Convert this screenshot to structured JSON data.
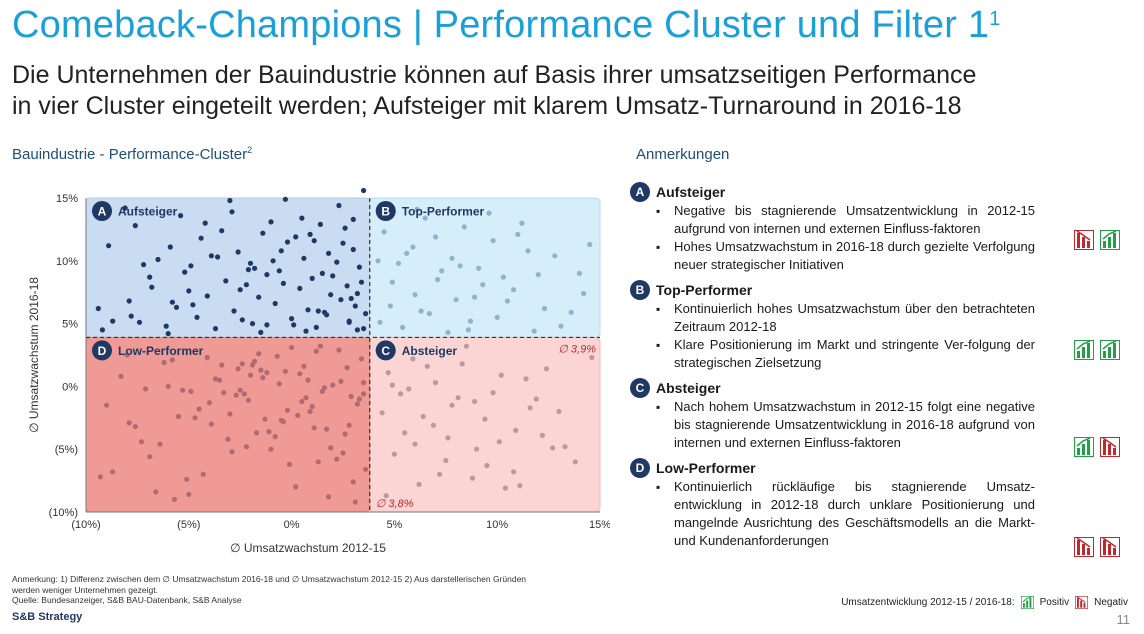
{
  "header": {
    "title": "Comeback-Champions | Performance Cluster und Filter 1",
    "title_sup": "1",
    "subtitle_line1": "Die Unternehmen der Bauindustrie können auf Basis ihrer umsatzseitigen Performance",
    "subtitle_line2": "in vier Cluster eingeteilt werden; Aufsteiger mit klarem Umsatz-Turnaround in 2016-18"
  },
  "chart_section_title": "Bauindustrie - Performance-Cluster",
  "chart_section_sup": "2",
  "notes_section_title": "Anmerkungen",
  "chart_data": {
    "type": "scatter",
    "xlabel": "∅ Umsatzwachstum 2012-15",
    "ylabel": "∅ Umsatzwachstum 2016-18",
    "xlim": [
      -10,
      15
    ],
    "ylim": [
      -10,
      15
    ],
    "x_ticks": [
      -10,
      -5,
      0,
      5,
      10,
      15
    ],
    "x_tick_labels": [
      "(10%)",
      "(5%)",
      "0%",
      "5%",
      "10%",
      "15%"
    ],
    "y_ticks": [
      -10,
      -5,
      0,
      5,
      10,
      15
    ],
    "y_tick_labels": [
      "(10%)",
      "(5%)",
      "0%",
      "5%",
      "10%",
      "15%"
    ],
    "x_threshold": 3.8,
    "y_threshold": 3.9,
    "x_threshold_label": "∅ 3,8%",
    "y_threshold_label": "∅ 3,9%",
    "quadrants": [
      {
        "letter": "A",
        "label": "Aufsteiger",
        "color": "#c9dcf2",
        "point_color": "#1f3864"
      },
      {
        "letter": "B",
        "label": "Top-Performer",
        "color": "#d6eefa",
        "point_color": "#8fb4cc"
      },
      {
        "letter": "C",
        "label": "Absteiger",
        "color": "#fbd5d3",
        "point_color": "#b99aa0"
      },
      {
        "letter": "D",
        "label": "Low-Performer",
        "color": "#ef9a94",
        "point_color": "#b06b72"
      }
    ],
    "series": [
      {
        "quadrant": "A",
        "x": [
          -9.2,
          -8.7,
          -7.9,
          -7.4,
          -6.8,
          -6.1,
          -5.6,
          -5.2,
          -4.6,
          -4.1,
          -3.7,
          -3.2,
          -2.8,
          -2.4,
          -2.0,
          -1.6,
          -1.2,
          -0.8,
          -0.4,
          0.0,
          0.4,
          0.8,
          1.2,
          1.6,
          2.0,
          2.4,
          2.8,
          3.2,
          3.5,
          -8.9,
          -7.6,
          -6.5,
          -5.4,
          -4.4,
          -3.4,
          -2.6,
          -1.8,
          -1.0,
          -0.2,
          0.6,
          1.4,
          2.2,
          3.0,
          -8.1,
          -6.9,
          -5.9,
          -4.9,
          -3.9,
          -2.9,
          -2.2,
          -1.4,
          -0.6,
          0.2,
          1.0,
          1.8,
          2.6,
          3.3,
          -9.4,
          -7.2,
          -5.0,
          -3.0,
          -1.2,
          0.5,
          1.9,
          3.1,
          -6.0,
          -4.2,
          -2.5,
          -0.9,
          0.9,
          2.3,
          3.4,
          -7.8,
          -3.6,
          -0.3,
          1.5,
          2.9,
          -5.8,
          -1.9,
          0.7,
          2.5,
          3.6,
          -4.8,
          -1.5,
          1.1,
          2.7,
          3.2,
          -2.1,
          0.1,
          1.7,
          3.0,
          -0.5,
          1.3,
          2.8,
          3.5
        ],
        "y": [
          4.5,
          5.2,
          6.8,
          5.1,
          7.9,
          4.8,
          6.3,
          9.1,
          5.5,
          7.2,
          4.6,
          8.4,
          6.0,
          5.3,
          9.8,
          7.1,
          4.9,
          6.6,
          8.2,
          5.4,
          7.8,
          6.1,
          4.7,
          5.9,
          8.8,
          6.9,
          5.2,
          7.4,
          4.6,
          11.2,
          12.8,
          10.1,
          13.6,
          11.8,
          12.4,
          10.7,
          9.4,
          13.1,
          11.5,
          10.2,
          12.9,
          9.9,
          10.9,
          14.2,
          8.7,
          11.1,
          9.6,
          10.4,
          13.9,
          8.1,
          12.2,
          9.2,
          11.9,
          8.6,
          10.6,
          12.6,
          9.5,
          6.2,
          9.7,
          7.6,
          14.8,
          8.9,
          13.4,
          7.3,
          6.4,
          4.2,
          13.0,
          7.7,
          10.0,
          12.1,
          14.4,
          8.3,
          5.6,
          10.3,
          14.9,
          9.0,
          7.0,
          6.7,
          5.0,
          4.4,
          11.4,
          5.8,
          6.5,
          4.3,
          11.6,
          8.0,
          4.5,
          9.3,
          4.9,
          5.7,
          13.3,
          10.8,
          6.0,
          5.1,
          15.6
        ]
      },
      {
        "quadrant": "B",
        "x": [
          4.3,
          4.8,
          5.4,
          6.0,
          6.7,
          7.3,
          8.0,
          8.6,
          9.3,
          10.0,
          10.8,
          11.5,
          12.3,
          13.1,
          14.2,
          4.5,
          5.2,
          5.9,
          6.5,
          7.1,
          7.8,
          8.4,
          9.1,
          9.8,
          10.5,
          11.2,
          12.0,
          12.8,
          13.6,
          14.5,
          4.9,
          5.6,
          6.3,
          7.0,
          7.6,
          8.2,
          8.9,
          9.6,
          10.3,
          11.0,
          4.2,
          6.1,
          8.7,
          11.8,
          14.0
        ],
        "y": [
          5.1,
          6.4,
          4.7,
          7.3,
          5.8,
          9.2,
          6.9,
          4.5,
          8.1,
          5.5,
          7.7,
          10.8,
          6.2,
          4.8,
          7.4,
          12.3,
          9.8,
          11.1,
          13.4,
          8.5,
          10.2,
          12.7,
          9.4,
          11.6,
          6.8,
          13.0,
          8.9,
          10.4,
          5.9,
          11.3,
          8.3,
          10.6,
          6.0,
          11.9,
          4.3,
          9.6,
          7.1,
          13.8,
          8.7,
          12.1,
          10.0,
          14.1,
          5.2,
          4.4,
          9.0
        ]
      },
      {
        "quadrant": "C",
        "x": [
          4.2,
          4.7,
          5.3,
          5.9,
          6.4,
          7.0,
          7.6,
          8.3,
          8.9,
          9.5,
          10.2,
          10.9,
          11.6,
          12.4,
          13.3,
          14.6,
          4.4,
          5.0,
          5.7,
          6.2,
          6.9,
          7.5,
          8.1,
          8.8,
          9.4,
          10.1,
          10.8,
          11.4,
          12.2,
          13.0,
          4.6,
          5.5,
          6.6,
          7.8,
          9.0,
          10.4,
          11.9,
          13.8,
          4.9,
          6.0,
          7.2,
          8.5,
          9.8,
          11.1,
          12.7
        ],
        "y": [
          2.9,
          1.1,
          -0.6,
          2.2,
          -2.4,
          0.3,
          -4.1,
          1.8,
          -1.2,
          -6.3,
          0.9,
          -3.5,
          -1.7,
          1.4,
          -4.8,
          2.3,
          -2.1,
          -5.4,
          -0.2,
          -7.8,
          -3.1,
          -5.9,
          -0.9,
          -7.3,
          -2.6,
          -4.4,
          -6.8,
          0.6,
          -3.9,
          -2.0,
          -8.7,
          -3.7,
          1.6,
          -1.5,
          -5.0,
          -8.1,
          -1.0,
          -6.0,
          0.1,
          -4.6,
          -7.0,
          3.2,
          -0.5,
          -7.9,
          -4.9
        ]
      },
      {
        "quadrant": "D",
        "x": [
          -9.0,
          -8.3,
          -7.6,
          -6.9,
          -6.2,
          -5.5,
          -4.9,
          -4.3,
          -3.7,
          -3.1,
          -2.6,
          -2.1,
          -1.6,
          -1.1,
          -0.6,
          -0.1,
          0.4,
          0.9,
          1.4,
          1.9,
          2.4,
          2.9,
          3.4,
          -8.7,
          -7.9,
          -7.1,
          -6.4,
          -5.8,
          -5.1,
          -4.5,
          -3.9,
          -3.4,
          -2.9,
          -2.3,
          -1.8,
          -1.3,
          -0.8,
          -0.3,
          0.2,
          0.7,
          1.2,
          1.7,
          2.2,
          2.7,
          3.2,
          3.6,
          -6.6,
          -5.3,
          -4.1,
          -3.0,
          -2.0,
          -1.0,
          0.0,
          1.0,
          2.0,
          3.0,
          -8.0,
          -6.0,
          -4.0,
          -2.4,
          -1.4,
          -0.4,
          0.6,
          1.6,
          2.6,
          3.5,
          -7.3,
          -5.7,
          -3.5,
          -2.7,
          -1.7,
          -0.7,
          0.3,
          1.3,
          2.3,
          3.3,
          -4.7,
          -3.3,
          -2.2,
          -1.2,
          -0.2,
          0.8,
          1.8,
          2.8,
          -2.5,
          -1.5,
          -0.5,
          0.5,
          1.5,
          2.5,
          3.5,
          -9.3,
          -5.0,
          -1.9,
          1.1,
          3.1
        ],
        "y": [
          -1.5,
          0.8,
          -3.2,
          -5.6,
          1.9,
          -2.4,
          -0.4,
          -7.0,
          0.6,
          -4.2,
          1.4,
          -1.1,
          2.6,
          -3.6,
          0.2,
          -6.2,
          1.0,
          -2.0,
          3.2,
          -4.9,
          0.4,
          -0.8,
          2.2,
          -6.8,
          -2.9,
          -0.2,
          -4.6,
          2.1,
          -7.4,
          -1.8,
          -3.0,
          1.7,
          -5.2,
          -0.6,
          2.0,
          -2.6,
          -4.0,
          1.2,
          -8.0,
          -0.9,
          2.8,
          -3.4,
          -5.8,
          1.5,
          -1.4,
          -6.6,
          -8.4,
          -0.3,
          2.3,
          -2.2,
          0.9,
          -5.0,
          3.1,
          -1.6,
          0.1,
          -7.6,
          2.5,
          0.0,
          -1.3,
          1.8,
          0.7,
          -2.8,
          1.6,
          -0.1,
          -3.8,
          0.3,
          -4.4,
          -9.0,
          0.5,
          -0.7,
          -3.7,
          2.4,
          -2.3,
          -6.0,
          2.9,
          -1.0,
          -2.5,
          -0.5,
          -4.8,
          1.1,
          -1.9,
          0.5,
          -8.8,
          -3.1,
          -0.3,
          1.3,
          -2.7,
          -1.2,
          -0.4,
          -5.3,
          -0.6,
          -7.2,
          -8.6,
          1.7,
          -3.3,
          -9.2
        ]
      }
    ]
  },
  "notes": [
    {
      "letter": "A",
      "heading": "Aufsteiger",
      "bullets": [
        "Negative bis stagnierende Umsatzentwicklung in 2012-15 aufgrund von internen und externen Einfluss-faktoren",
        "Hohes Umsatzwachstum in 2016-18 durch gezielte Verfolgung neuer strategischer Initiativen"
      ],
      "icons": [
        "negative-chart-icon",
        "positive-chart-icon"
      ]
    },
    {
      "letter": "B",
      "heading": "Top-Performer",
      "bullets": [
        "Kontinuierlich hohes Umsatzwachstum über den betrachteten Zeitraum 2012-18",
        "Klare Positionierung im Markt und stringente Ver-folgung der strategischen Zielsetzung"
      ],
      "icons": [
        "positive-chart-icon",
        "positive-chart-icon"
      ]
    },
    {
      "letter": "C",
      "heading": "Absteiger",
      "bullets": [
        "Nach hohem Umsatzwachstum in 2012-15 folgt eine negative bis stagnierende Umsatzentwicklung in 2016-18 aufgrund von internen und externen Einfluss-faktoren"
      ],
      "icons": [
        "positive-chart-icon",
        "negative-chart-icon"
      ]
    },
    {
      "letter": "D",
      "heading": "Low-Performer",
      "bullets": [
        "Kontinuierlich rückläufige bis stagnierende Umsatz-entwicklung in 2012-18 durch unklare Positionierung und mangelnde Ausrichtung des Geschäftsmodells an die Markt- und Kundenanforderungen"
      ],
      "icons": [
        "negative-chart-icon",
        "negative-chart-icon"
      ]
    }
  ],
  "legend": {
    "label": "Umsatzentwicklung 2012-15 / 2016-18:",
    "positive": "Positiv",
    "negative": "Negativ",
    "positive_color": "#22a045",
    "negative_color": "#c0282d"
  },
  "footnote": {
    "line1": "Anmerkung: 1) Differenz zwischen dem ∅ Umsatzwachstum 2016-18 und ∅ Umsatzwachstum 2012-15  2) Aus darstellerischen Gründen",
    "line2": "werden weniger Unternehmen gezeigt.",
    "line3": "Quelle: Bundesanzeiger, S&B BAU-Datenbank, S&B Analyse"
  },
  "brand": "S&B Strategy",
  "page_number": "11"
}
